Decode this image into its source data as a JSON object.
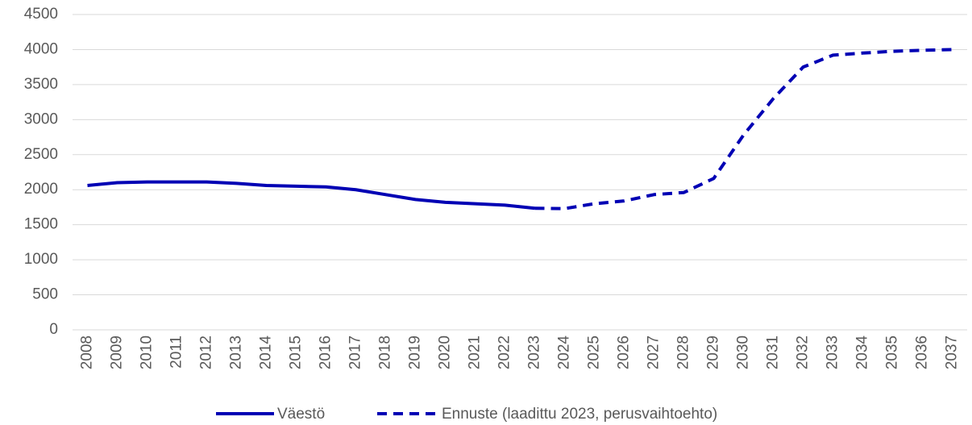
{
  "chart_data": {
    "type": "line",
    "categories": [
      "2008",
      "2009",
      "2010",
      "2011",
      "2012",
      "2013",
      "2014",
      "2015",
      "2016",
      "2017",
      "2018",
      "2019",
      "2020",
      "2021",
      "2022",
      "2023",
      "2024",
      "2025",
      "2026",
      "2027",
      "2028",
      "2029",
      "2030",
      "2031",
      "2032",
      "2033",
      "2034",
      "2035",
      "2036",
      "2037"
    ],
    "series": [
      {
        "name": "Väestö",
        "color": "#0000b4",
        "dash": false,
        "values": [
          2060,
          2100,
          2110,
          2110,
          2110,
          2090,
          2060,
          2050,
          2040,
          2000,
          1930,
          1860,
          1820,
          1800,
          1780,
          1735,
          null,
          null,
          null,
          null,
          null,
          null,
          null,
          null,
          null,
          null,
          null,
          null,
          null,
          null
        ]
      },
      {
        "name": "Ennuste (laadittu 2023, perusvaihtoehto)",
        "color": "#0000b4",
        "dash": true,
        "values": [
          null,
          null,
          null,
          null,
          null,
          null,
          null,
          null,
          null,
          null,
          null,
          null,
          null,
          null,
          null,
          1735,
          1730,
          1800,
          1840,
          1930,
          1960,
          2160,
          2780,
          3300,
          3750,
          3920,
          3950,
          3975,
          3990,
          4000
        ]
      }
    ],
    "ylim": [
      0,
      4500
    ],
    "yticks": [
      0,
      500,
      1000,
      1500,
      2000,
      2500,
      3000,
      3500,
      4000,
      4500
    ],
    "grid": true,
    "legend": "bottom"
  }
}
